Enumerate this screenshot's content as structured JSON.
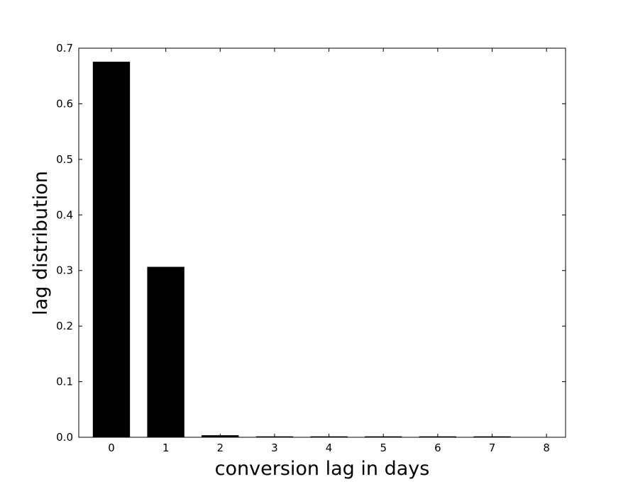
{
  "chart_data": {
    "type": "bar",
    "title": "",
    "xlabel": "conversion lag in days",
    "ylabel": "lag distribution",
    "categories": [
      "0",
      "1",
      "2",
      "3",
      "4",
      "5",
      "6",
      "7",
      "8"
    ],
    "values": [
      0.675,
      0.306,
      0.003,
      0.001,
      0.001,
      0.001,
      0.001,
      0.001,
      0.0
    ],
    "xlim": [
      -0.6,
      8.35
    ],
    "ylim": [
      0,
      0.7
    ],
    "xticks": [
      "0",
      "1",
      "2",
      "3",
      "4",
      "5",
      "6",
      "7",
      "8"
    ],
    "yticks": [
      "0.0",
      "0.1",
      "0.2",
      "0.3",
      "0.4",
      "0.5",
      "0.6",
      "0.7"
    ],
    "bar_color": "#000000",
    "grid": false,
    "legend": "none"
  }
}
